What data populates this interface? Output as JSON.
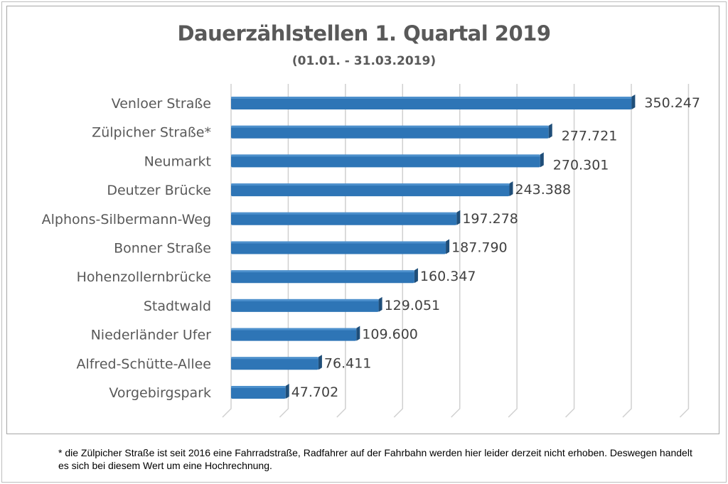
{
  "chart_data": {
    "type": "bar",
    "orientation": "horizontal",
    "style": "3d",
    "title": "Dauerzählstellen 1. Quartal 2019",
    "subtitle": "(01.01. - 31.03.2019)",
    "categories": [
      "Venloer Straße",
      "Zülpicher Straße*",
      "Neumarkt",
      "Deutzer Brücke",
      "Alphons-Silbermann-Weg",
      "Bonner Straße",
      "Hohenzollernbrücke",
      "Stadtwald",
      "Niederländer Ufer",
      "Alfred-Schütte-Allee",
      "Vorgebirgspark"
    ],
    "values": [
      350247,
      277721,
      270301,
      243388,
      197278,
      187790,
      160347,
      129051,
      109600,
      76411,
      47702
    ],
    "data_labels": [
      "350.247",
      "277.721",
      "270.301",
      "243.388",
      "197.278",
      "187.790",
      "160.347",
      "129.051",
      "109.600",
      "76.411",
      "47.702"
    ],
    "xlim": [
      0,
      400000
    ],
    "grid_step": 50000,
    "grid": true,
    "tick_labels_visible": false,
    "bar_color": "#2e75b6"
  },
  "footnote": "* die Zülpicher Straße ist seit 2016 eine Fahrradstraße, Radfahrer auf der Fahrbahn werden hier leider derzeit nicht erhoben. Deswegen handelt es sich bei diesem Wert um eine Hochrechnung."
}
